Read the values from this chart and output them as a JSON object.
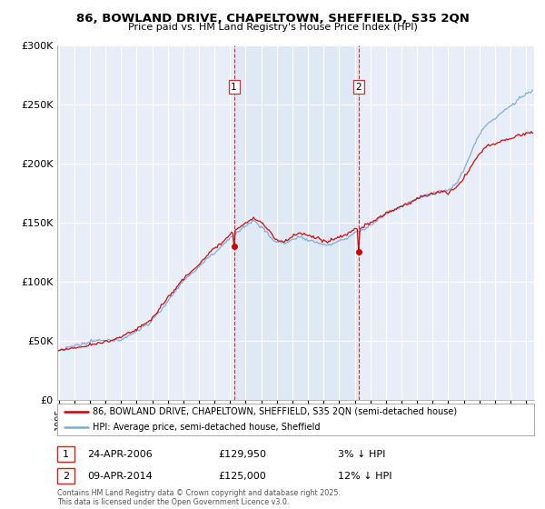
{
  "title_line1": "86, BOWLAND DRIVE, CHAPELTOWN, SHEFFIELD, S35 2QN",
  "title_line2": "Price paid vs. HM Land Registry's House Price Index (HPI)",
  "background_color": "#ffffff",
  "plot_bg_color": "#e8eef8",
  "line1_color": "#cc0000",
  "line2_color": "#7aaadd",
  "line1_label": "86, BOWLAND DRIVE, CHAPELTOWN, SHEFFIELD, S35 2QN (semi-detached house)",
  "line2_label": "HPI: Average price, semi-detached house, Sheffield",
  "marker1_date_str": "24-APR-2006",
  "marker1_price": "£129,950",
  "marker1_note": "3% ↓ HPI",
  "marker2_date_str": "09-APR-2014",
  "marker2_price": "£125,000",
  "marker2_note": "12% ↓ HPI",
  "ylim": [
    0,
    300000
  ],
  "yticks": [
    0,
    50000,
    100000,
    150000,
    200000,
    250000,
    300000
  ],
  "ytick_labels": [
    "£0",
    "£50K",
    "£100K",
    "£150K",
    "£200K",
    "£250K",
    "£300K"
  ],
  "copyright_text": "Contains HM Land Registry data © Crown copyright and database right 2025.\nThis data is licensed under the Open Government Licence v3.0."
}
